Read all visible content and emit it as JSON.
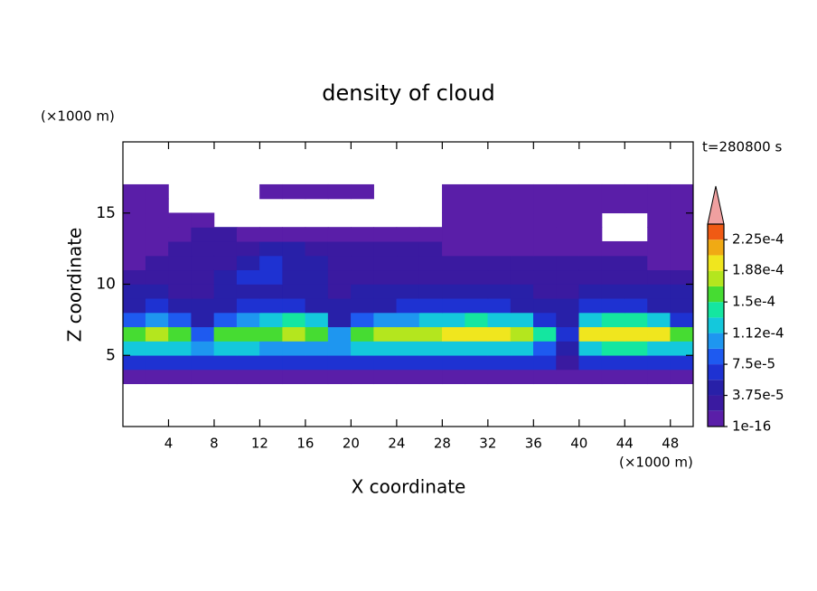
{
  "chart_data": {
    "type": "contour",
    "title": "density of cloud",
    "time_label": "t=280800 s",
    "x_label": "X coordinate",
    "y_label": "Z coordinate",
    "x_unit": "(×1000 m)",
    "y_unit": "(×1000 m)",
    "xlim": [
      0,
      50
    ],
    "ylim": [
      0,
      20
    ],
    "xticks": [
      4,
      8,
      12,
      16,
      20,
      24,
      28,
      32,
      36,
      40,
      44,
      48
    ],
    "yticks": [
      5,
      10,
      15
    ],
    "xbins": [
      0,
      2,
      4,
      6,
      8,
      10,
      12,
      14,
      16,
      18,
      20,
      22,
      24,
      26,
      28,
      30,
      32,
      34,
      36,
      38,
      40,
      42,
      44,
      46,
      48,
      50
    ],
    "zbins": [
      3,
      4,
      5,
      6,
      7,
      8,
      9,
      10,
      11,
      12,
      13,
      14,
      15,
      16,
      17
    ],
    "z": [
      [
        5e-06,
        5e-06,
        5e-06,
        5e-06,
        5e-06,
        5e-06,
        5e-06,
        5e-06,
        5e-06,
        5e-06,
        5e-06,
        5e-06,
        5e-06,
        5e-06,
        5e-06,
        5e-06,
        5e-06,
        5e-06,
        5e-06,
        5e-06,
        5e-06,
        5e-06,
        5e-06,
        5e-06,
        5e-06
      ],
      [
        6e-05,
        6e-05,
        6e-05,
        6e-05,
        6e-05,
        6e-05,
        6e-05,
        6e-05,
        6e-05,
        6e-05,
        6e-05,
        6e-05,
        6e-05,
        6e-05,
        6e-05,
        6e-05,
        6e-05,
        6e-05,
        6e-05,
        3e-05,
        6e-05,
        6e-05,
        6e-05,
        6e-05,
        6e-05
      ],
      [
        0.00013,
        0.00013,
        0.00012,
        0.0001,
        0.00012,
        0.00012,
        0.0001,
        0.0001,
        0.00011,
        0.0001,
        0.00012,
        0.00013,
        0.00013,
        0.00013,
        0.00013,
        0.00013,
        0.00013,
        0.00013,
        9e-05,
        5e-05,
        0.00013,
        0.00014,
        0.00014,
        0.00013,
        0.00012
      ],
      [
        0.00016,
        0.00017,
        0.00016,
        9e-05,
        0.00015,
        0.00015,
        0.00015,
        0.00017,
        0.00016,
        0.00011,
        0.00016,
        0.00017,
        0.00018,
        0.00018,
        0.00019,
        0.00019,
        0.00019,
        0.00018,
        0.00014,
        6e-05,
        0.00019,
        0.0002,
        0.0002,
        0.00019,
        0.00015
      ],
      [
        9e-05,
        0.0001,
        8e-05,
        4e-05,
        9e-05,
        0.0001,
        0.00012,
        0.00014,
        0.00013,
        5e-05,
        8e-05,
        0.0001,
        0.00011,
        0.00012,
        0.00013,
        0.00014,
        0.00013,
        0.00012,
        6e-05,
        4e-05,
        0.00013,
        0.00014,
        0.00014,
        0.00012,
        7e-05
      ],
      [
        5e-05,
        6e-05,
        5e-05,
        4e-05,
        5e-05,
        6e-05,
        6e-05,
        6e-05,
        5e-05,
        4e-05,
        5e-05,
        5e-05,
        6e-05,
        6e-05,
        6e-05,
        6e-05,
        6e-05,
        5e-05,
        4e-05,
        4e-05,
        6e-05,
        6e-05,
        6e-05,
        5e-05,
        5e-05
      ],
      [
        4e-05,
        4e-05,
        3e-05,
        3e-05,
        4e-05,
        4e-05,
        5e-05,
        5e-05,
        4e-05,
        3e-05,
        4e-05,
        4e-05,
        4e-05,
        4e-05,
        4e-05,
        4e-05,
        4e-05,
        4e-05,
        3e-05,
        3e-05,
        4e-05,
        4e-05,
        4e-05,
        4e-05,
        4e-05
      ],
      [
        2e-05,
        3e-05,
        2e-05,
        3e-05,
        5e-05,
        6e-05,
        6e-05,
        5e-05,
        4e-05,
        3e-05,
        3e-05,
        3e-05,
        3e-05,
        3e-05,
        3e-05,
        3e-05,
        3e-05,
        3e-05,
        2e-05,
        3e-05,
        3e-05,
        3e-05,
        3e-05,
        3e-05,
        3e-05
      ],
      [
        1.5e-05,
        2e-05,
        2e-05,
        2e-05,
        3e-05,
        5e-05,
        6e-05,
        5e-05,
        4e-05,
        3e-05,
        2e-05,
        3e-05,
        3e-05,
        3e-05,
        2e-05,
        2e-05,
        2e-05,
        2e-05,
        2e-05,
        2e-05,
        2e-05,
        2e-05,
        2e-05,
        1.5e-05,
        1.5e-05
      ],
      [
        1e-05,
        1.5e-05,
        2e-05,
        2e-05,
        2e-05,
        3e-05,
        4e-05,
        4e-05,
        3e-05,
        2e-05,
        2e-05,
        2e-05,
        2e-05,
        2e-05,
        1.5e-05,
        1e-05,
        1e-05,
        1e-05,
        1e-05,
        1e-05,
        1e-05,
        1e-05,
        1e-05,
        1e-05,
        1e-05
      ],
      [
        5e-06,
        1e-05,
        1e-05,
        2e-05,
        2e-05,
        1e-05,
        1e-05,
        1e-05,
        1e-05,
        1e-05,
        1e-05,
        1e-05,
        1e-05,
        5e-06,
        5e-06,
        5e-06,
        5e-06,
        5e-06,
        5e-06,
        5e-06,
        5e-06,
        null,
        null,
        5e-06,
        5e-06
      ],
      [
        5e-06,
        5e-06,
        5e-06,
        5e-06,
        null,
        null,
        null,
        null,
        null,
        null,
        null,
        null,
        null,
        null,
        5e-06,
        5e-06,
        5e-06,
        5e-06,
        5e-06,
        5e-06,
        5e-06,
        null,
        null,
        5e-06,
        5e-06
      ],
      [
        5e-06,
        5e-06,
        null,
        null,
        null,
        null,
        null,
        null,
        null,
        null,
        null,
        null,
        null,
        null,
        5e-06,
        5e-06,
        5e-06,
        5e-06,
        5e-06,
        5e-06,
        5e-06,
        5e-06,
        5e-06,
        5e-06,
        5e-06
      ],
      [
        5e-06,
        5e-06,
        null,
        null,
        null,
        null,
        5e-06,
        5e-06,
        5e-06,
        5e-06,
        5e-06,
        null,
        null,
        null,
        5e-06,
        5e-06,
        5e-06,
        5e-06,
        5e-06,
        5e-06,
        5e-06,
        5e-06,
        5e-06,
        5e-06,
        5e-06
      ]
    ],
    "levels": [
      1e-16,
      1.875e-05,
      3.75e-05,
      5.625e-05,
      7.5e-05,
      9.375e-05,
      0.0001125,
      0.00013125,
      0.00015,
      0.00016875,
      0.0001875,
      0.00020625,
      0.000225,
      0.00024375
    ],
    "colors": [
      "#5a1ea8",
      "#3a1aa0",
      "#2820a8",
      "#1e32d2",
      "#1e5af0",
      "#1e96f0",
      "#14c8dc",
      "#14e6a0",
      "#46dc32",
      "#b4e61e",
      "#f0e61e",
      "#f0aa14",
      "#f05a14"
    ],
    "extend_color": "#f0a0a0",
    "colorbar_ticks": [
      {
        "value": 1e-16,
        "label": "1e-16"
      },
      {
        "value": 3.75e-05,
        "label": "3.75e-5"
      },
      {
        "value": 7.5e-05,
        "label": "7.5e-5"
      },
      {
        "value": 0.000112,
        "label": "1.12e-4"
      },
      {
        "value": 0.00015,
        "label": "1.5e-4"
      },
      {
        "value": 0.000188,
        "label": "1.88e-4"
      },
      {
        "value": 0.000225,
        "label": "2.25e-4"
      }
    ]
  }
}
